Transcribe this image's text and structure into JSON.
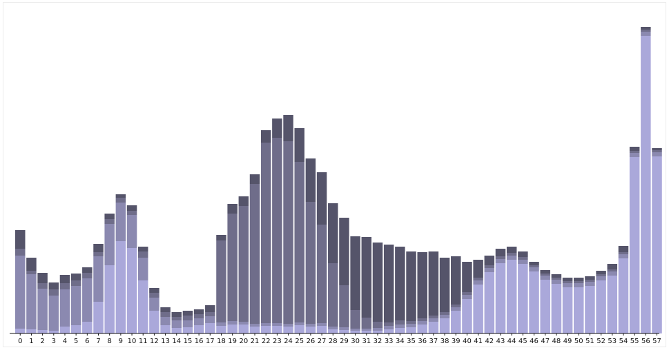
{
  "chart_data": {
    "type": "bar",
    "stacked": true,
    "categories": [
      "0",
      "1",
      "2",
      "3",
      "4",
      "5",
      "6",
      "7",
      "8",
      "9",
      "10",
      "11",
      "12",
      "13",
      "14",
      "15",
      "16",
      "17",
      "18",
      "19",
      "20",
      "21",
      "22",
      "23",
      "24",
      "25",
      "26",
      "27",
      "28",
      "29",
      "30",
      "31",
      "32",
      "33",
      "34",
      "35",
      "36",
      "37",
      "38",
      "39",
      "40",
      "41",
      "42",
      "43",
      "44",
      "45",
      "46",
      "47",
      "48",
      "49",
      "50",
      "51",
      "52",
      "53",
      "54",
      "55",
      "56",
      "57"
    ],
    "ylim": [
      0,
      450
    ],
    "grid": false,
    "legend": "none",
    "colors": [
      "#aaa8da",
      "#8b89b0",
      "#6f6d8a",
      "#55546a"
    ],
    "series": [
      {
        "values": [
          7,
          6,
          5,
          4,
          10,
          12,
          17,
          46,
          99,
          134,
          124,
          77,
          33,
          12,
          8,
          9,
          12,
          15,
          11,
          13,
          13,
          10,
          11,
          11,
          10,
          12,
          10,
          11,
          6,
          5,
          4,
          4,
          4,
          6,
          8,
          9,
          13,
          17,
          22,
          33,
          50,
          71,
          89,
          102,
          107,
          101,
          90,
          78,
          72,
          67,
          67,
          69,
          77,
          84,
          109,
          256,
          432,
          257
        ]
      },
      {
        "values": [
          106,
          80,
          60,
          51,
          54,
          57,
          63,
          66,
          60,
          56,
          48,
          33,
          19,
          12,
          11,
          10,
          10,
          10,
          5,
          5,
          4,
          4,
          4,
          4,
          4,
          4,
          4,
          4,
          4,
          4,
          3,
          3,
          4,
          5,
          5,
          5,
          5,
          5,
          5,
          5,
          6,
          6,
          6,
          6,
          6,
          6,
          6,
          6,
          6,
          6,
          6,
          6,
          6,
          6,
          6,
          6,
          6,
          6
        ]
      },
      {
        "values": [
          10,
          5,
          8,
          9,
          9,
          8,
          8,
          6,
          7,
          7,
          6,
          9,
          7,
          7,
          5,
          7,
          6,
          6,
          119,
          156,
          168,
          203,
          262,
          269,
          265,
          233,
          177,
          143,
          92,
          61,
          27,
          16,
          9,
          5,
          6,
          4,
          4,
          4,
          4,
          4,
          4,
          4,
          4,
          4,
          4,
          4,
          3,
          3,
          3,
          3,
          3,
          3,
          3,
          3,
          3,
          3,
          3,
          3
        ]
      },
      {
        "values": [
          27,
          19,
          15,
          10,
          12,
          10,
          8,
          12,
          8,
          5,
          8,
          7,
          7,
          7,
          7,
          7,
          7,
          10,
          8,
          14,
          14,
          14,
          18,
          28,
          38,
          49,
          63,
          76,
          87,
          98,
          107,
          117,
          115,
          113,
          107,
          101,
          96,
          93,
          79,
          70,
          44,
          26,
          14,
          11,
          9,
          8,
          5,
          5,
          5,
          5,
          5,
          5,
          5,
          8,
          9,
          6,
          4,
          3
        ]
      }
    ]
  }
}
